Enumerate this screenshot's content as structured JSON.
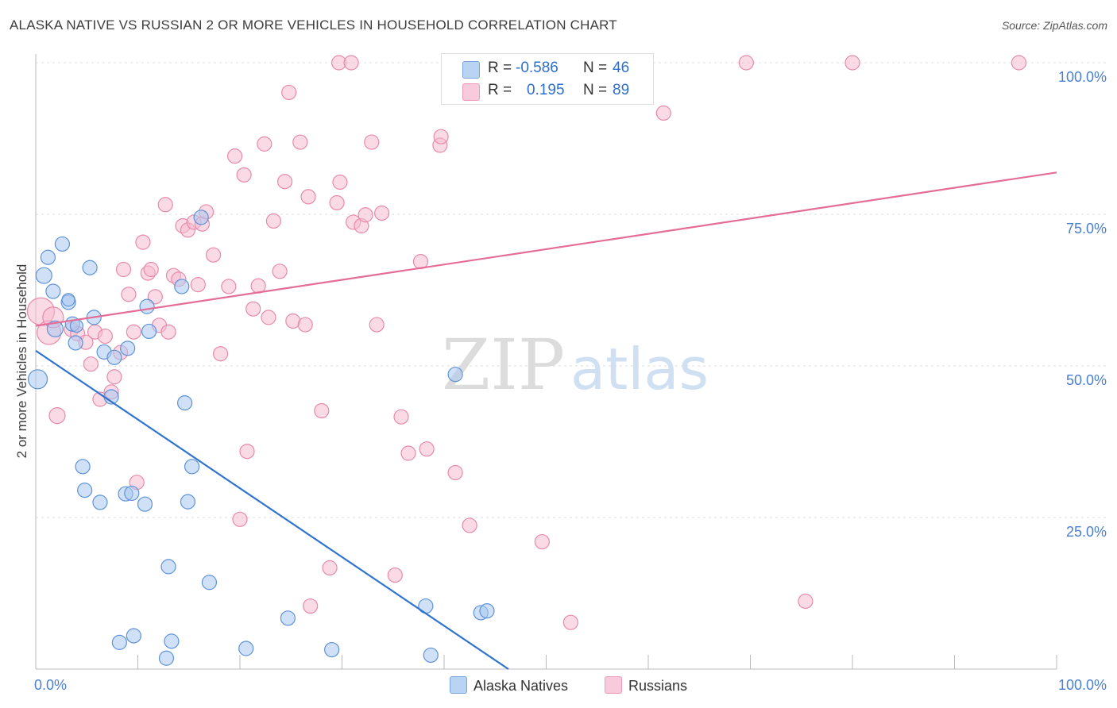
{
  "title": "ALASKA NATIVE VS RUSSIAN 2 OR MORE VEHICLES IN HOUSEHOLD CORRELATION CHART",
  "source": "Source: ZipAtlas.com",
  "watermark": {
    "zip": "ZIP",
    "atlas": "atlas"
  },
  "colors": {
    "alaska_fill": "#a9c8f0",
    "alaska_stroke": "#5e93d8",
    "alaska_line": "#2f73d1",
    "russian_fill": "#f6bcd0",
    "russian_stroke": "#e88aab",
    "russian_line": "#e46d98",
    "axis_tick_text": "#4a7fcf",
    "grid": "#dddddd"
  },
  "legend_top": {
    "rows": [
      {
        "r_label": "R =",
        "r_value": "-0.586",
        "n_label": "N =",
        "n_value": "46"
      },
      {
        "r_label": "R =",
        "r_value": "0.195",
        "n_label": "N =",
        "n_value": "89"
      }
    ]
  },
  "legend_bottom": {
    "items": [
      "Alaska Natives",
      "Russians"
    ]
  },
  "chart_data": {
    "type": "scatter",
    "title": "ALASKA NATIVE VS RUSSIAN 2 OR MORE VEHICLES IN HOUSEHOLD CORRELATION CHART",
    "ylabel": "2 or more Vehicles in Household",
    "xlabel": "",
    "xlim": [
      0,
      100
    ],
    "ylim": [
      0,
      100
    ],
    "x_tick_labels": {
      "left": "0.0%",
      "right": "100.0%"
    },
    "y_ticks": [
      {
        "value": 100,
        "label": "100.0%"
      },
      {
        "value": 75,
        "label": "75.0%"
      },
      {
        "value": 50,
        "label": "50.0%"
      },
      {
        "value": 25,
        "label": "25.0%"
      }
    ],
    "grid": true,
    "legend_placement": "bottom",
    "series": [
      {
        "name": "Alaska Natives",
        "r": -0.586,
        "n": 46,
        "trend": {
          "x0": 0,
          "y0": 52.5,
          "x1": 46.3,
          "y1": 0
        },
        "points": [
          [
            0.2,
            47.8,
            11
          ],
          [
            0.8,
            64.9,
            9
          ],
          [
            1.2,
            67.9,
            8
          ],
          [
            1.7,
            62.3,
            8
          ],
          [
            1.9,
            56.1,
            9
          ],
          [
            2.6,
            70.1,
            8
          ],
          [
            3.2,
            60.5,
            8
          ],
          [
            3.2,
            60.9,
            7
          ],
          [
            3.6,
            56.9,
            8
          ],
          [
            3.9,
            53.8,
            8
          ],
          [
            4.0,
            56.6,
            7
          ],
          [
            4.6,
            33.4,
            8
          ],
          [
            4.8,
            29.5,
            8
          ],
          [
            5.3,
            66.2,
            8
          ],
          [
            5.7,
            58.0,
            8
          ],
          [
            6.3,
            27.5,
            8
          ],
          [
            6.7,
            52.3,
            8
          ],
          [
            7.4,
            44.9,
            8
          ],
          [
            7.7,
            51.4,
            8
          ],
          [
            8.2,
            4.4,
            8
          ],
          [
            8.8,
            28.9,
            8
          ],
          [
            9.0,
            52.9,
            8
          ],
          [
            9.4,
            29.0,
            8
          ],
          [
            9.6,
            5.5,
            8
          ],
          [
            10.7,
            27.2,
            8
          ],
          [
            10.9,
            59.8,
            8
          ],
          [
            11.1,
            55.7,
            8
          ],
          [
            12.8,
            1.8,
            8
          ],
          [
            13.0,
            16.9,
            8
          ],
          [
            13.3,
            4.6,
            8
          ],
          [
            14.3,
            63.1,
            8
          ],
          [
            14.6,
            43.9,
            8
          ],
          [
            14.9,
            27.6,
            8
          ],
          [
            15.3,
            33.4,
            8
          ],
          [
            16.2,
            74.5,
            8
          ],
          [
            17.0,
            14.3,
            8
          ],
          [
            20.6,
            3.4,
            8
          ],
          [
            24.7,
            8.4,
            8
          ],
          [
            29.0,
            3.2,
            8
          ],
          [
            38.2,
            10.4,
            8
          ],
          [
            38.7,
            2.3,
            8
          ],
          [
            41.1,
            48.6,
            8
          ],
          [
            43.6,
            9.3,
            8
          ],
          [
            44.2,
            9.6,
            8
          ],
          [
            17.9,
            2.0,
            0
          ],
          [
            30.0,
            1.0,
            0
          ]
        ]
      },
      {
        "name": "Russians",
        "r": 0.195,
        "n": 89,
        "trend": {
          "x0": 0,
          "y0": 56.6,
          "x1": 100,
          "y1": 81.9
        },
        "points": [
          [
            0.5,
            59.0,
            16
          ],
          [
            1.3,
            55.5,
            14
          ],
          [
            1.7,
            58.0,
            12
          ],
          [
            2.1,
            41.8,
            9
          ],
          [
            3.5,
            56.0,
            8
          ],
          [
            4.1,
            55.3,
            8
          ],
          [
            4.9,
            53.9,
            8
          ],
          [
            5.4,
            50.3,
            8
          ],
          [
            5.8,
            55.6,
            8
          ],
          [
            6.3,
            44.5,
            8
          ],
          [
            6.8,
            54.9,
            8
          ],
          [
            7.4,
            45.7,
            8
          ],
          [
            7.7,
            48.2,
            8
          ],
          [
            8.3,
            52.2,
            8
          ],
          [
            8.6,
            65.9,
            8
          ],
          [
            9.1,
            61.8,
            8
          ],
          [
            9.6,
            55.6,
            8
          ],
          [
            9.9,
            30.8,
            8
          ],
          [
            10.5,
            70.4,
            8
          ],
          [
            11.0,
            65.3,
            8
          ],
          [
            11.3,
            65.9,
            8
          ],
          [
            11.7,
            61.4,
            8
          ],
          [
            12.1,
            56.7,
            8
          ],
          [
            12.7,
            76.6,
            8
          ],
          [
            13.0,
            55.6,
            8
          ],
          [
            13.5,
            64.9,
            8
          ],
          [
            14.0,
            64.3,
            8
          ],
          [
            14.4,
            73.1,
            8
          ],
          [
            14.9,
            72.4,
            8
          ],
          [
            15.5,
            73.7,
            8
          ],
          [
            15.9,
            63.4,
            8
          ],
          [
            16.3,
            73.4,
            8
          ],
          [
            16.7,
            75.4,
            8
          ],
          [
            17.4,
            68.3,
            8
          ],
          [
            18.1,
            52.0,
            8
          ],
          [
            18.9,
            63.1,
            8
          ],
          [
            19.5,
            84.6,
            8
          ],
          [
            20.0,
            24.7,
            8
          ],
          [
            20.4,
            81.5,
            8
          ],
          [
            20.7,
            35.9,
            8
          ],
          [
            21.3,
            59.4,
            8
          ],
          [
            21.8,
            63.2,
            8
          ],
          [
            22.4,
            86.6,
            8
          ],
          [
            22.8,
            58.0,
            8
          ],
          [
            23.3,
            73.9,
            8
          ],
          [
            23.9,
            65.6,
            8
          ],
          [
            24.4,
            80.4,
            8
          ],
          [
            24.8,
            95.1,
            8
          ],
          [
            25.2,
            57.4,
            8
          ],
          [
            25.9,
            86.9,
            8
          ],
          [
            26.4,
            56.8,
            8
          ],
          [
            26.9,
            10.4,
            8
          ],
          [
            26.7,
            77.9,
            8
          ],
          [
            28.0,
            42.6,
            8
          ],
          [
            28.8,
            16.7,
            8
          ],
          [
            29.5,
            76.9,
            8
          ],
          [
            29.8,
            80.3,
            8
          ],
          [
            29.7,
            100.0,
            8
          ],
          [
            30.9,
            100.0,
            8
          ],
          [
            31.1,
            73.7,
            8
          ],
          [
            31.9,
            73.1,
            8
          ],
          [
            32.3,
            74.9,
            8
          ],
          [
            32.9,
            86.9,
            8
          ],
          [
            33.4,
            56.8,
            8
          ],
          [
            33.9,
            75.2,
            8
          ],
          [
            35.2,
            15.5,
            8
          ],
          [
            35.8,
            41.6,
            8
          ],
          [
            36.5,
            35.6,
            8
          ],
          [
            37.7,
            67.2,
            8
          ],
          [
            38.3,
            36.3,
            8
          ],
          [
            39.6,
            86.4,
            8
          ],
          [
            39.7,
            87.8,
            8
          ],
          [
            41.1,
            32.4,
            8
          ],
          [
            42.5,
            23.7,
            8
          ],
          [
            47.2,
            100.0,
            8
          ],
          [
            47.7,
            100.0,
            8
          ],
          [
            49.6,
            21.0,
            8
          ],
          [
            50.3,
            100.0,
            8
          ],
          [
            52.4,
            7.7,
            8
          ],
          [
            57.0,
            100.0,
            8
          ],
          [
            61.5,
            91.7,
            8
          ],
          [
            69.6,
            100.0,
            8
          ],
          [
            75.4,
            11.2,
            8
          ],
          [
            80.0,
            100.0,
            8
          ],
          [
            90.0,
            100.0,
            0
          ],
          [
            96.3,
            100.0,
            8
          ],
          [
            100.0,
            100.0,
            0
          ],
          [
            8.0,
            53.0,
            0
          ],
          [
            6.0,
            57.0,
            0
          ]
        ]
      }
    ]
  }
}
